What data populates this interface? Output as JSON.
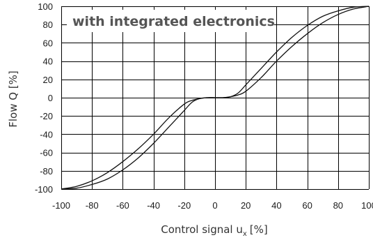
{
  "chart_data": {
    "type": "line",
    "xlabel": "Control signal u",
    "xlabel_subscript": "x",
    "xlabel_unit": "[%]",
    "ylabel": "Flow Q [%]",
    "annotation": "with integrated electronics",
    "xlim": [
      -100,
      100
    ],
    "ylim": [
      -100,
      100
    ],
    "xticks": [
      -100,
      -80,
      -60,
      -40,
      -20,
      0,
      20,
      40,
      60,
      80,
      100
    ],
    "yticks": [
      100,
      80,
      60,
      40,
      20,
      0,
      -20,
      -40,
      -60,
      -80,
      -100
    ],
    "grid": true,
    "series": [
      {
        "x": [
          -100,
          -90,
          -80,
          -70,
          -60,
          -50,
          -40,
          -30,
          -20,
          -15,
          -10,
          -5,
          0,
          5,
          10,
          15,
          20,
          30,
          40,
          50,
          60,
          70,
          80,
          90,
          100
        ],
        "y": [
          -100,
          -97,
          -91,
          -82,
          -70,
          -56,
          -40,
          -22,
          -7,
          -3,
          -1,
          0,
          0,
          0,
          1,
          5,
          14,
          32,
          50,
          66,
          79,
          89,
          95,
          99,
          100
        ]
      },
      {
        "x": [
          -100,
          -90,
          -80,
          -70,
          -60,
          -50,
          -40,
          -30,
          -20,
          -15,
          -10,
          -5,
          0,
          5,
          10,
          15,
          20,
          30,
          40,
          50,
          60,
          70,
          80,
          90,
          100
        ],
        "y": [
          -100,
          -99,
          -95,
          -89,
          -79,
          -66,
          -50,
          -32,
          -14,
          -5,
          -1,
          0,
          0,
          0,
          1,
          3,
          7,
          22,
          40,
          56,
          70,
          82,
          91,
          97,
          100
        ]
      }
    ]
  }
}
